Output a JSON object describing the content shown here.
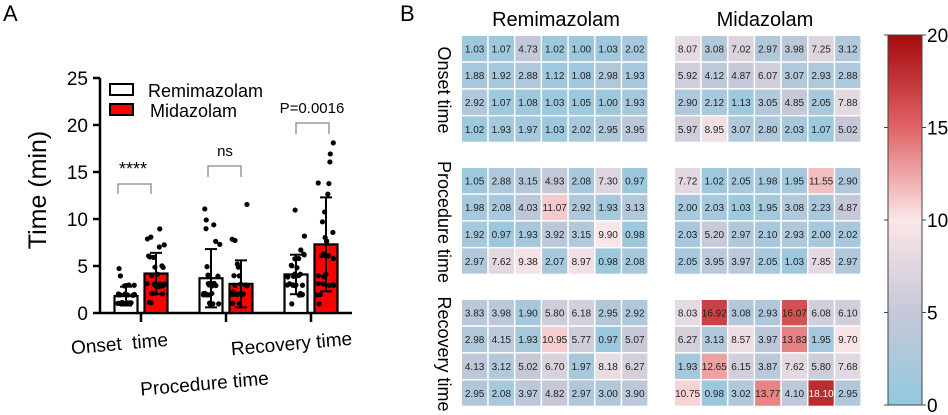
{
  "panels": {
    "a": "A",
    "b": "B"
  },
  "chart_data": [
    {
      "type": "bar",
      "ylabel": "Time (min)",
      "ylim": [
        0,
        25
      ],
      "yticks": [
        0,
        5,
        10,
        15,
        20,
        25
      ],
      "categories": [
        "Onset  time",
        "Procedure time",
        "Recovery time"
      ],
      "legend_position": "top-left",
      "series": [
        {
          "name": "Remimazolam",
          "color": "#ffffff",
          "mean": [
            1.8,
            3.7,
            4.1
          ],
          "sd": [
            1.0,
            3.1,
            2.1
          ]
        },
        {
          "name": "Midazolam",
          "color": "#ff0000",
          "mean": [
            4.2,
            3.1,
            7.3
          ],
          "sd": [
            2.2,
            2.5,
            5.0
          ]
        }
      ],
      "points_note_source": "individual points equal heatmap values",
      "annotations": [
        "****",
        "ns",
        "P=0.0016"
      ]
    },
    {
      "type": "heatmap",
      "column_titles": [
        "Remimazolam",
        "Midazolam"
      ],
      "row_groups": [
        "Onset time",
        "Procedure time",
        "Recovery time"
      ],
      "colorbar": {
        "range": [
          0,
          20
        ],
        "ticks": [
          0,
          5,
          10,
          15,
          20
        ],
        "colors": [
          "#92c8e0",
          "#c6c8d8",
          "#fbe6e8",
          "#e06466",
          "#a30a0e"
        ]
      },
      "values": {
        "Remimazolam": [
          [
            [
              1.03,
              1.07,
              4.73,
              1.02,
              1.0,
              1.03,
              2.02
            ],
            [
              1.88,
              1.92,
              2.88,
              1.12,
              1.08,
              2.98,
              1.93
            ],
            [
              2.92,
              1.07,
              1.08,
              1.03,
              1.05,
              1.0,
              1.93
            ],
            [
              1.02,
              1.93,
              1.97,
              1.03,
              2.02,
              2.95,
              3.95
            ]
          ],
          [
            [
              1.05,
              2.88,
              3.15,
              4.93,
              2.08,
              7.3,
              0.97
            ],
            [
              1.98,
              2.08,
              4.03,
              11.07,
              2.92,
              1.93,
              3.13
            ],
            [
              1.92,
              0.97,
              1.93,
              3.92,
              3.15,
              9.9,
              0.98
            ],
            [
              2.97,
              7.62,
              9.38,
              2.07,
              8.97,
              0.98,
              2.08
            ]
          ],
          [
            [
              3.83,
              3.98,
              1.9,
              5.8,
              6.18,
              2.95,
              2.92
            ],
            [
              2.98,
              4.15,
              1.93,
              10.95,
              5.77,
              0.97,
              5.07
            ],
            [
              4.13,
              3.12,
              5.02,
              6.7,
              1.97,
              8.18,
              6.27
            ],
            [
              2.95,
              2.08,
              3.97,
              4.82,
              2.97,
              3.0,
              3.9
            ]
          ]
        ],
        "Midazolam": [
          [
            [
              8.07,
              3.08,
              7.02,
              2.97,
              3.98,
              7.25,
              3.12
            ],
            [
              5.92,
              4.12,
              4.87,
              6.07,
              3.07,
              2.93,
              2.88
            ],
            [
              2.9,
              2.12,
              1.13,
              3.05,
              4.85,
              2.05,
              7.88
            ],
            [
              5.97,
              8.95,
              3.07,
              2.8,
              2.03,
              1.07,
              5.02
            ]
          ],
          [
            [
              7.72,
              1.02,
              2.05,
              1.98,
              1.95,
              11.55,
              2.9
            ],
            [
              2.0,
              2.03,
              1.03,
              1.95,
              3.08,
              2.23,
              4.87
            ],
            [
              2.03,
              5.2,
              2.97,
              2.1,
              2.93,
              2.0,
              2.02
            ],
            [
              2.05,
              3.95,
              3.97,
              2.05,
              1.03,
              7.85,
              2.97
            ]
          ],
          [
            [
              8.03,
              16.92,
              3.08,
              2.93,
              16.07,
              6.08,
              6.1
            ],
            [
              6.27,
              3.13,
              8.57,
              3.97,
              13.83,
              1.95,
              9.7
            ],
            [
              1.93,
              12.65,
              6.15,
              3.87,
              7.62,
              5.8,
              7.68
            ],
            [
              10.75,
              0.98,
              3.02,
              13.77,
              4.1,
              18.1,
              2.95
            ]
          ]
        ]
      }
    }
  ]
}
